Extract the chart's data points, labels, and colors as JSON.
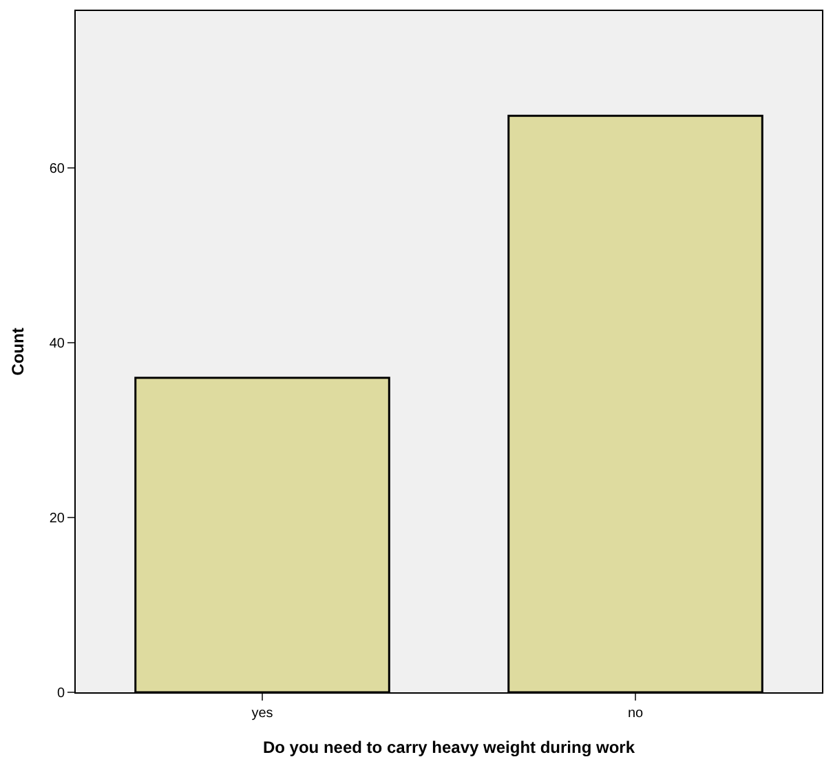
{
  "chart_data": {
    "type": "bar",
    "xlabel": "Do you need to carry heavy weight during work",
    "ylabel": "Count",
    "categories": [
      "yes",
      "no"
    ],
    "values": [
      36,
      66
    ],
    "color": "#dedb9f",
    "ylim": [
      0,
      78
    ],
    "yticks": [
      0,
      20,
      40,
      60
    ],
    "grid": false
  }
}
